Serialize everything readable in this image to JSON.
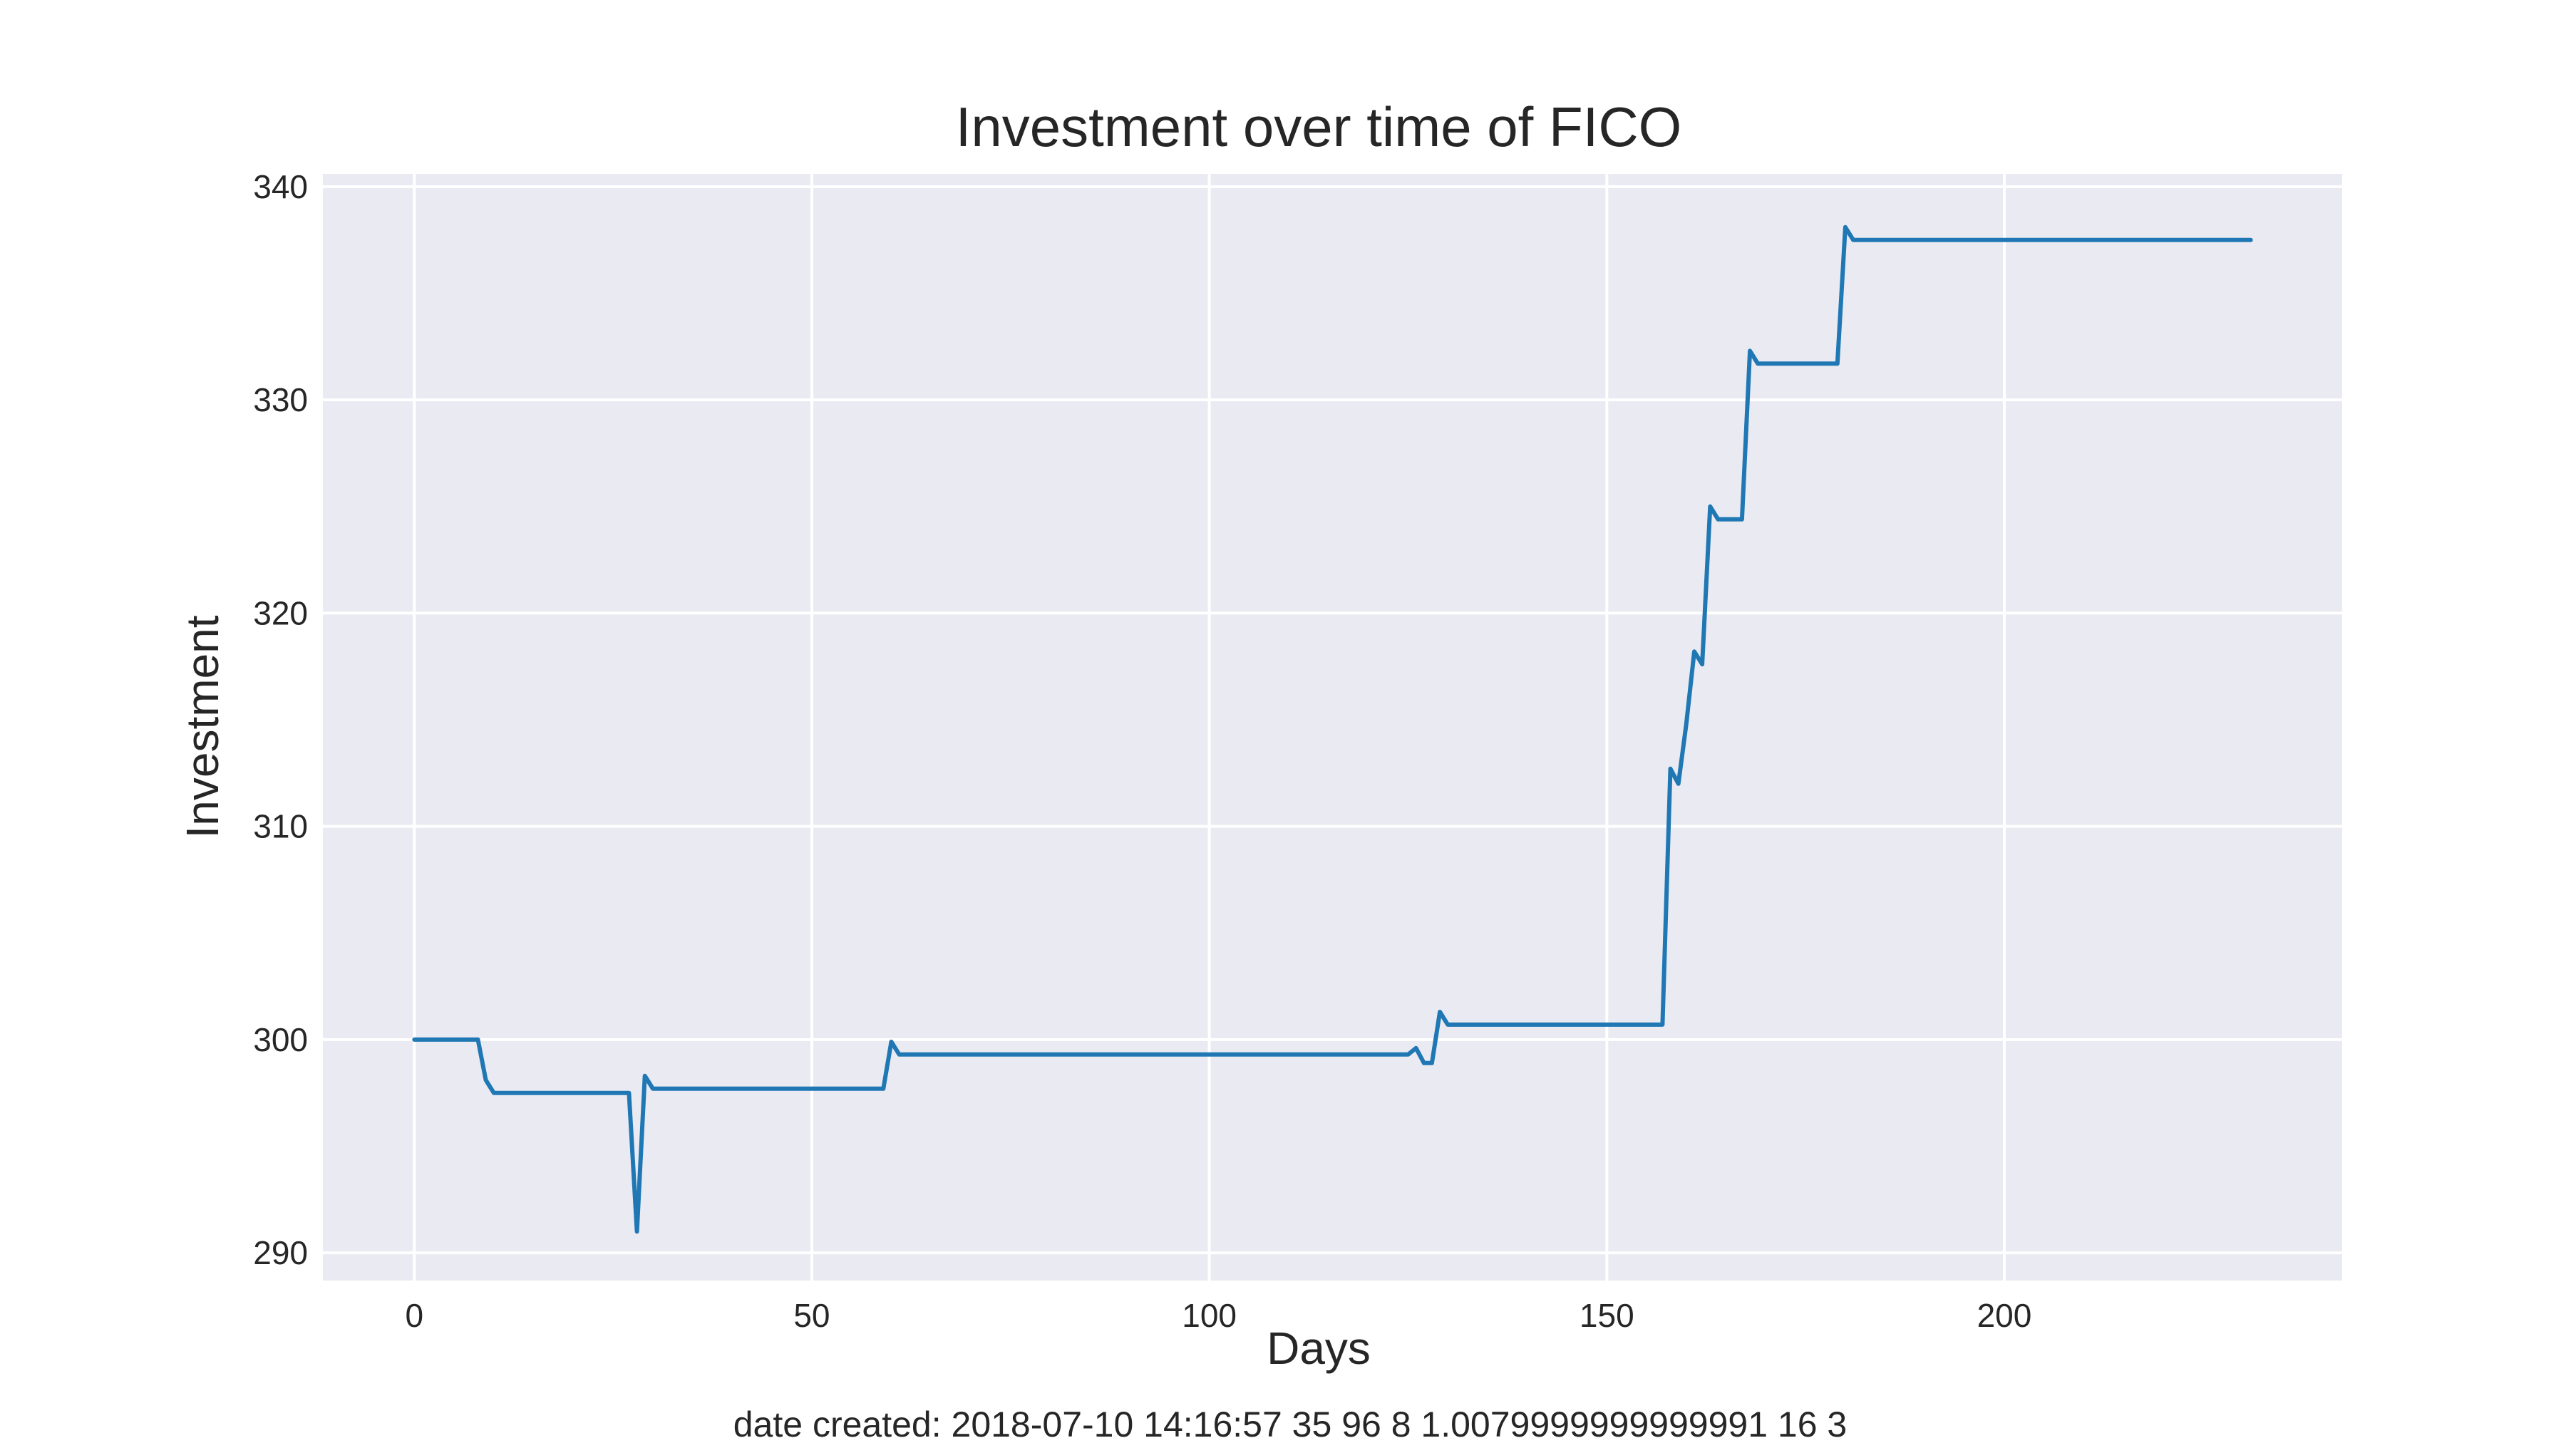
{
  "chart_data": {
    "type": "line",
    "title": "Investment over time of FICO",
    "xlabel": "Days",
    "ylabel": "Investment",
    "footer": "date created: 2018-07-10 14:16:57 35 96 8 1.0079999999999991 16 3",
    "xlim": [
      -11.5,
      242.5
    ],
    "ylim": [
      288.7,
      340.6
    ],
    "x_ticks": [
      0,
      50,
      100,
      150,
      200
    ],
    "y_ticks": [
      290,
      300,
      310,
      320,
      330,
      340
    ],
    "grid": true,
    "style": "seaborn-darkgrid",
    "colors": {
      "line": "#1f77b4",
      "plot_bg": "#eaeaf2",
      "grid": "#ffffff",
      "text": "#262626"
    },
    "series": [
      {
        "points": [
          [
            0,
            300.0
          ],
          [
            8,
            300.0
          ],
          [
            9,
            298.1
          ],
          [
            10,
            297.5
          ],
          [
            27,
            297.5
          ],
          [
            28,
            291.0
          ],
          [
            29,
            298.3
          ],
          [
            30,
            297.7
          ],
          [
            59,
            297.7
          ],
          [
            60,
            299.9
          ],
          [
            61,
            299.3
          ],
          [
            125,
            299.3
          ],
          [
            126,
            299.6
          ],
          [
            127,
            298.9
          ],
          [
            128,
            298.9
          ],
          [
            129,
            301.3
          ],
          [
            130,
            300.7
          ],
          [
            157,
            300.7
          ],
          [
            158,
            312.7
          ],
          [
            159,
            312.0
          ],
          [
            160,
            314.8
          ],
          [
            161,
            318.2
          ],
          [
            162,
            317.6
          ],
          [
            163,
            325.0
          ],
          [
            164,
            324.4
          ],
          [
            167,
            324.4
          ],
          [
            168,
            332.3
          ],
          [
            169,
            331.7
          ],
          [
            179,
            331.7
          ],
          [
            180,
            338.1
          ],
          [
            181,
            337.5
          ],
          [
            231,
            337.5
          ]
        ]
      }
    ]
  }
}
